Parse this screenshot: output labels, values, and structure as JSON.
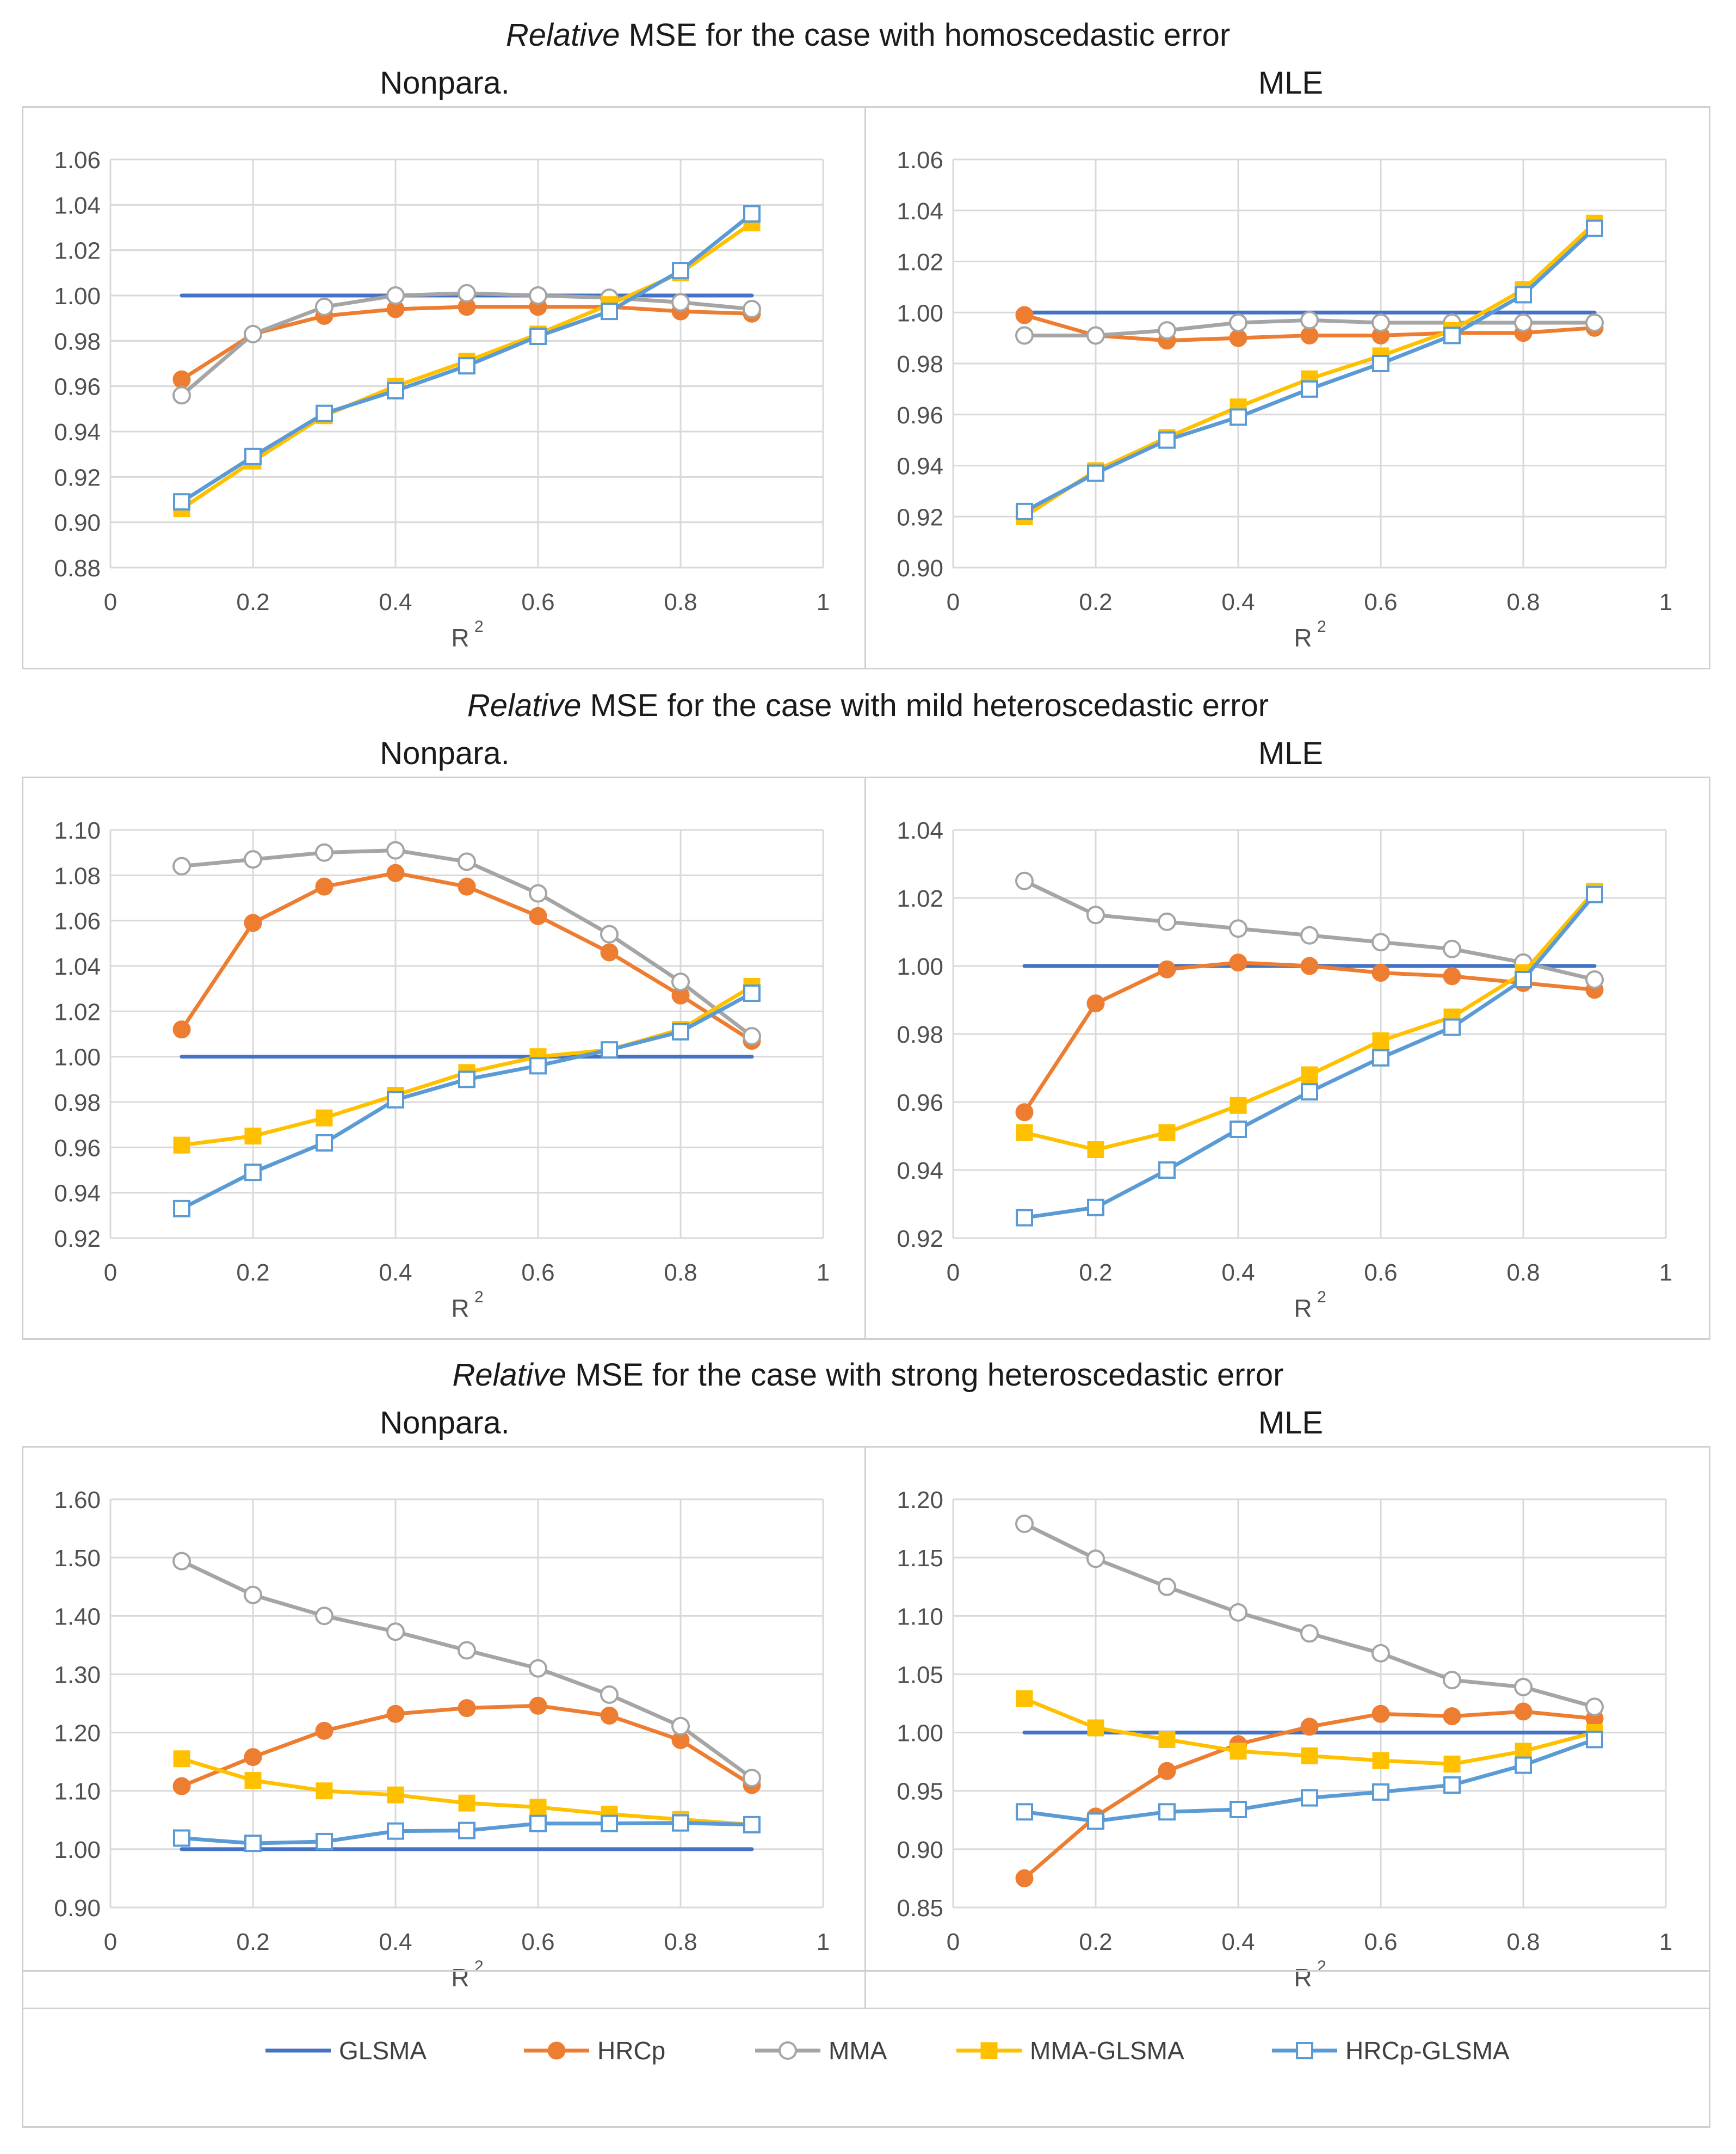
{
  "figure": {
    "sections": [
      {
        "title_em": "Relative",
        "title_rest": " MSE for the case with homoscedastic error"
      },
      {
        "title_em": "Relative",
        "title_rest": " MSE for the case with mild heteroscedastic error"
      },
      {
        "title_em": "Relative",
        "title_rest": " MSE for the case with strong heteroscedastic error"
      }
    ],
    "legend": [
      {
        "name": "GLSMA",
        "color": "#4472C4",
        "marker": "none"
      },
      {
        "name": "HRCp",
        "color": "#ED7D31",
        "marker": "filled-circle"
      },
      {
        "name": "MMA",
        "color": "#A5A5A5",
        "marker": "open-circle"
      },
      {
        "name": "MMA-GLSMA",
        "color": "#FFC000",
        "marker": "filled-square"
      },
      {
        "name": "HRCp-GLSMA",
        "color": "#5B9BD5",
        "marker": "open-square"
      }
    ]
  },
  "chart_data": [
    {
      "type": "line",
      "panel": "Nonpara.",
      "section": 0,
      "xlabel": "R",
      "xlabel_sup": "2",
      "x": [
        0.1,
        0.2,
        0.3,
        0.4,
        0.5,
        0.6,
        0.7,
        0.8,
        0.9
      ],
      "xlim": [
        0,
        1
      ],
      "xticks": [
        0,
        0.2,
        0.4,
        0.6,
        0.8,
        1
      ],
      "xtick_labels": [
        "0",
        "0.2",
        "0.4",
        "0.6",
        "0.8",
        "1"
      ],
      "ylim": [
        0.88,
        1.06
      ],
      "yticks": [
        0.88,
        0.9,
        0.92,
        0.94,
        0.96,
        0.98,
        1.0,
        1.02,
        1.04,
        1.06
      ],
      "ytick_labels": [
        "0.88",
        "0.90",
        "0.92",
        "0.94",
        "0.96",
        "0.98",
        "1.00",
        "1.02",
        "1.04",
        "1.06"
      ],
      "series": [
        {
          "name": "GLSMA",
          "values": [
            1.0,
            1.0,
            1.0,
            1.0,
            1.0,
            1.0,
            1.0,
            1.0,
            1.0
          ]
        },
        {
          "name": "HRCp",
          "values": [
            0.963,
            0.983,
            0.991,
            0.994,
            0.995,
            0.995,
            0.995,
            0.993,
            0.992
          ]
        },
        {
          "name": "MMA",
          "values": [
            0.956,
            0.983,
            0.995,
            1.0,
            1.001,
            1.0,
            0.999,
            0.997,
            0.994
          ]
        },
        {
          "name": "MMA-GLSMA",
          "values": [
            0.906,
            0.927,
            0.947,
            0.96,
            0.971,
            0.983,
            0.996,
            1.01,
            1.032
          ]
        },
        {
          "name": "HRCp-GLSMA",
          "values": [
            0.909,
            0.929,
            0.948,
            0.958,
            0.969,
            0.982,
            0.993,
            1.011,
            1.036
          ]
        }
      ]
    },
    {
      "type": "line",
      "panel": "MLE",
      "section": 0,
      "xlabel": "R",
      "xlabel_sup": "2",
      "x": [
        0.1,
        0.2,
        0.3,
        0.4,
        0.5,
        0.6,
        0.7,
        0.8,
        0.9
      ],
      "xlim": [
        0,
        1
      ],
      "xticks": [
        0,
        0.2,
        0.4,
        0.6,
        0.8,
        1
      ],
      "xtick_labels": [
        "0",
        "0.2",
        "0.4",
        "0.6",
        "0.8",
        "1"
      ],
      "ylim": [
        0.9,
        1.06
      ],
      "yticks": [
        0.9,
        0.92,
        0.94,
        0.96,
        0.98,
        1.0,
        1.02,
        1.04,
        1.06
      ],
      "ytick_labels": [
        "0.90",
        "0.92",
        "0.94",
        "0.96",
        "0.98",
        "1.00",
        "1.02",
        "1.04",
        "1.06"
      ],
      "series": [
        {
          "name": "GLSMA",
          "values": [
            1.0,
            1.0,
            1.0,
            1.0,
            1.0,
            1.0,
            1.0,
            1.0,
            1.0
          ]
        },
        {
          "name": "HRCp",
          "values": [
            0.999,
            0.991,
            0.989,
            0.99,
            0.991,
            0.991,
            0.992,
            0.992,
            0.994
          ]
        },
        {
          "name": "MMA",
          "values": [
            0.991,
            0.991,
            0.993,
            0.996,
            0.997,
            0.996,
            0.996,
            0.996,
            0.996
          ]
        },
        {
          "name": "MMA-GLSMA",
          "values": [
            0.92,
            0.938,
            0.951,
            0.963,
            0.974,
            0.983,
            0.993,
            1.009,
            1.035
          ]
        },
        {
          "name": "HRCp-GLSMA",
          "values": [
            0.922,
            0.937,
            0.95,
            0.959,
            0.97,
            0.98,
            0.991,
            1.007,
            1.033
          ]
        }
      ]
    },
    {
      "type": "line",
      "panel": "Nonpara.",
      "section": 1,
      "xlabel": "R",
      "xlabel_sup": "2",
      "x": [
        0.1,
        0.2,
        0.3,
        0.4,
        0.5,
        0.6,
        0.7,
        0.8,
        0.9
      ],
      "xlim": [
        0,
        1
      ],
      "xticks": [
        0,
        0.2,
        0.4,
        0.6,
        0.8,
        1
      ],
      "xtick_labels": [
        "0",
        "0.2",
        "0.4",
        "0.6",
        "0.8",
        "1"
      ],
      "ylim": [
        0.92,
        1.1
      ],
      "yticks": [
        0.92,
        0.94,
        0.96,
        0.98,
        1.0,
        1.02,
        1.04,
        1.06,
        1.08,
        1.1
      ],
      "ytick_labels": [
        "0.92",
        "0.94",
        "0.96",
        "0.98",
        "1.00",
        "1.02",
        "1.04",
        "1.06",
        "1.08",
        "1.10"
      ],
      "series": [
        {
          "name": "GLSMA",
          "values": [
            1.0,
            1.0,
            1.0,
            1.0,
            1.0,
            1.0,
            1.0,
            1.0,
            1.0
          ]
        },
        {
          "name": "HRCp",
          "values": [
            1.012,
            1.059,
            1.075,
            1.081,
            1.075,
            1.062,
            1.046,
            1.027,
            1.007
          ]
        },
        {
          "name": "MMA",
          "values": [
            1.084,
            1.087,
            1.09,
            1.091,
            1.086,
            1.072,
            1.054,
            1.033,
            1.009
          ]
        },
        {
          "name": "MMA-GLSMA",
          "values": [
            0.961,
            0.965,
            0.973,
            0.983,
            0.993,
            1.0,
            1.003,
            1.012,
            1.031
          ]
        },
        {
          "name": "HRCp-GLSMA",
          "values": [
            0.933,
            0.949,
            0.962,
            0.981,
            0.99,
            0.996,
            1.003,
            1.011,
            1.028
          ]
        }
      ]
    },
    {
      "type": "line",
      "panel": "MLE",
      "section": 1,
      "xlabel": "R",
      "xlabel_sup": "2",
      "x": [
        0.1,
        0.2,
        0.3,
        0.4,
        0.5,
        0.6,
        0.7,
        0.8,
        0.9
      ],
      "xlim": [
        0,
        1
      ],
      "xticks": [
        0,
        0.2,
        0.4,
        0.6,
        0.8,
        1
      ],
      "xtick_labels": [
        "0",
        "0.2",
        "0.4",
        "0.6",
        "0.8",
        "1"
      ],
      "ylim": [
        0.92,
        1.04
      ],
      "yticks": [
        0.92,
        0.94,
        0.96,
        0.98,
        1.0,
        1.02,
        1.04
      ],
      "ytick_labels": [
        "0.92",
        "0.94",
        "0.96",
        "0.98",
        "1.00",
        "1.02",
        "1.04"
      ],
      "series": [
        {
          "name": "GLSMA",
          "values": [
            1.0,
            1.0,
            1.0,
            1.0,
            1.0,
            1.0,
            1.0,
            1.0,
            1.0
          ]
        },
        {
          "name": "HRCp",
          "values": [
            0.957,
            0.989,
            0.999,
            1.001,
            1.0,
            0.998,
            0.997,
            0.995,
            0.993
          ]
        },
        {
          "name": "MMA",
          "values": [
            1.025,
            1.015,
            1.013,
            1.011,
            1.009,
            1.007,
            1.005,
            1.001,
            0.996
          ]
        },
        {
          "name": "MMA-GLSMA",
          "values": [
            0.951,
            0.946,
            0.951,
            0.959,
            0.968,
            0.978,
            0.985,
            0.998,
            1.022
          ]
        },
        {
          "name": "HRCp-GLSMA",
          "values": [
            0.926,
            0.929,
            0.94,
            0.952,
            0.963,
            0.973,
            0.982,
            0.996,
            1.021
          ]
        }
      ]
    },
    {
      "type": "line",
      "panel": "Nonpara.",
      "section": 2,
      "xlabel": "R",
      "xlabel_sup": "2",
      "x": [
        0.1,
        0.2,
        0.3,
        0.4,
        0.5,
        0.6,
        0.7,
        0.8,
        0.9
      ],
      "xlim": [
        0,
        1
      ],
      "xticks": [
        0,
        0.2,
        0.4,
        0.6,
        0.8,
        1
      ],
      "xtick_labels": [
        "0",
        "0.2",
        "0.4",
        "0.6",
        "0.8",
        "1"
      ],
      "ylim": [
        0.9,
        1.6
      ],
      "yticks": [
        0.9,
        1.0,
        1.1,
        1.2,
        1.3,
        1.4,
        1.5,
        1.6
      ],
      "ytick_labels": [
        "0.90",
        "1.00",
        "1.10",
        "1.20",
        "1.30",
        "1.40",
        "1.50",
        "1.60"
      ],
      "series": [
        {
          "name": "GLSMA",
          "values": [
            1.0,
            1.0,
            1.0,
            1.0,
            1.0,
            1.0,
            1.0,
            1.0,
            1.0
          ]
        },
        {
          "name": "HRCp",
          "values": [
            1.108,
            1.158,
            1.203,
            1.232,
            1.242,
            1.246,
            1.229,
            1.187,
            1.11
          ]
        },
        {
          "name": "MMA",
          "values": [
            1.494,
            1.436,
            1.4,
            1.373,
            1.341,
            1.31,
            1.265,
            1.211,
            1.122
          ]
        },
        {
          "name": "MMA-GLSMA",
          "values": [
            1.155,
            1.118,
            1.1,
            1.093,
            1.079,
            1.072,
            1.06,
            1.051,
            1.042
          ]
        },
        {
          "name": "HRCp-GLSMA",
          "values": [
            1.019,
            1.01,
            1.013,
            1.031,
            1.032,
            1.044,
            1.044,
            1.045,
            1.042
          ]
        }
      ]
    },
    {
      "type": "line",
      "panel": "MLE",
      "section": 2,
      "xlabel": "R",
      "xlabel_sup": "2",
      "x": [
        0.1,
        0.2,
        0.3,
        0.4,
        0.5,
        0.6,
        0.7,
        0.8,
        0.9
      ],
      "xlim": [
        0,
        1
      ],
      "xticks": [
        0,
        0.2,
        0.4,
        0.6,
        0.8,
        1
      ],
      "xtick_labels": [
        "0",
        "0.2",
        "0.4",
        "0.6",
        "0.8",
        "1"
      ],
      "ylim": [
        0.85,
        1.2
      ],
      "yticks": [
        0.85,
        0.9,
        0.95,
        1.0,
        1.05,
        1.1,
        1.15,
        1.2
      ],
      "ytick_labels": [
        "0.85",
        "0.90",
        "0.95",
        "1.00",
        "1.05",
        "1.10",
        "1.15",
        "1.20"
      ],
      "series": [
        {
          "name": "GLSMA",
          "values": [
            1.0,
            1.0,
            1.0,
            1.0,
            1.0,
            1.0,
            1.0,
            1.0,
            1.0
          ]
        },
        {
          "name": "HRCp",
          "values": [
            0.875,
            0.928,
            0.967,
            0.99,
            1.005,
            1.016,
            1.014,
            1.018,
            1.012
          ]
        },
        {
          "name": "MMA",
          "values": [
            1.179,
            1.149,
            1.125,
            1.103,
            1.085,
            1.068,
            1.045,
            1.039,
            1.022
          ]
        },
        {
          "name": "MMA-GLSMA",
          "values": [
            1.029,
            1.004,
            0.994,
            0.984,
            0.98,
            0.976,
            0.973,
            0.984,
            1.0
          ]
        },
        {
          "name": "HRCp-GLSMA",
          "values": [
            0.932,
            0.924,
            0.932,
            0.934,
            0.944,
            0.949,
            0.955,
            0.972,
            0.994
          ]
        }
      ]
    }
  ]
}
